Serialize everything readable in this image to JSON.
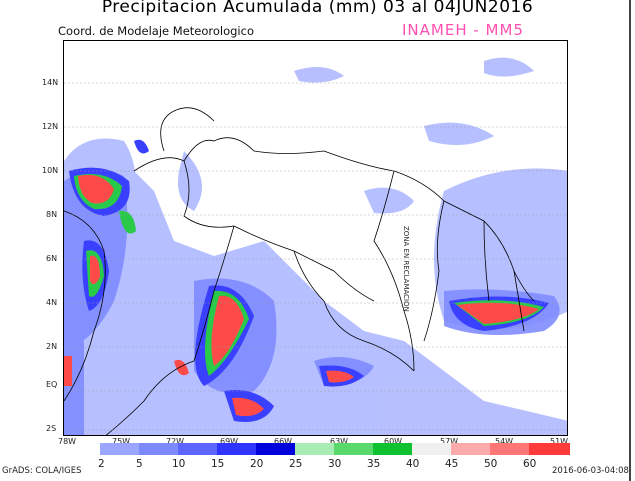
{
  "title": "Precipitacion Acumulada (mm) 03 al 04JUN2016",
  "subtitle": "Coord. de Modelaje Meteorologico",
  "brand": "INAMEH - MM5",
  "map": {
    "lat_labels": [
      "14N",
      "12N",
      "10N",
      "8N",
      "6N",
      "4N",
      "2N",
      "EQ",
      "2S"
    ],
    "lon_labels": [
      "78W",
      "75W",
      "72W",
      "69W",
      "66W",
      "63W",
      "60W",
      "57W",
      "54W",
      "51W"
    ],
    "zone_label": "ZONA EN RECLAMACION"
  },
  "colorbar": {
    "labels": [
      "2",
      "5",
      "10",
      "15",
      "20",
      "25",
      "30",
      "35",
      "40",
      "45",
      "50",
      "60"
    ],
    "colors": [
      "#9aa6ff",
      "#7d8aff",
      "#5c66ff",
      "#2f35ff",
      "#0000dd",
      "#a8eeb4",
      "#59d86c",
      "#10c22f",
      "#f0f0f0",
      "#ffaaaa",
      "#ff7676",
      "#ff3a3a"
    ]
  },
  "footer_left": "GrADS: COLA/IGES",
  "footer_right": "2016-06-03-04:08"
}
